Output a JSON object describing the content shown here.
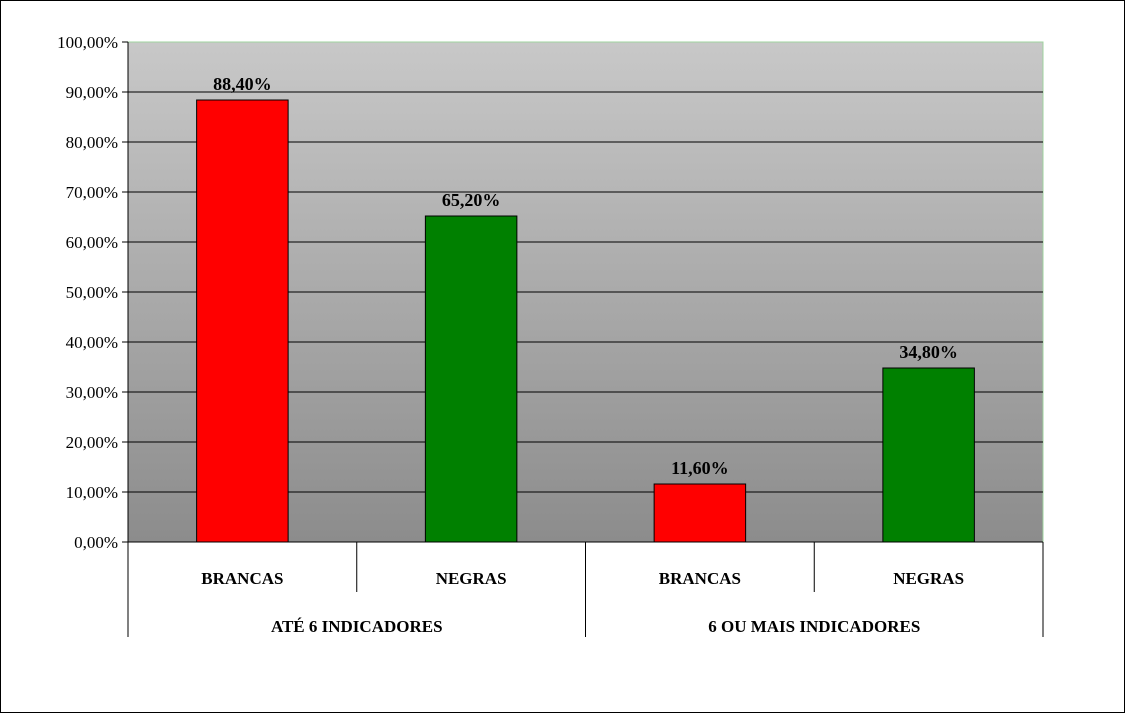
{
  "chart_data": {
    "type": "bar",
    "groups": [
      {
        "label": "ATÉ 6 INDICADORES",
        "categories": [
          "BRANCAS",
          "NEGRAS"
        ],
        "values": [
          88.4,
          65.2
        ],
        "value_labels": [
          "88,40%",
          "65,20%"
        ]
      },
      {
        "label": "6 OU MAIS INDICADORES",
        "categories": [
          "BRANCAS",
          "NEGRAS"
        ],
        "values": [
          11.6,
          34.8
        ],
        "value_labels": [
          "11,60%",
          "34,80%"
        ]
      }
    ],
    "ylim": [
      0,
      100
    ],
    "yticks": [
      "0,00%",
      "10,00%",
      "20,00%",
      "30,00%",
      "40,00%",
      "50,00%",
      "60,00%",
      "70,00%",
      "80,00%",
      "90,00%",
      "100,00%"
    ],
    "category_colors": {
      "BRANCAS": "#ff0000",
      "NEGRAS": "#008000"
    },
    "plot_gradient": [
      "#c8c8c8",
      "#8c8c8c"
    ],
    "grid": true
  }
}
